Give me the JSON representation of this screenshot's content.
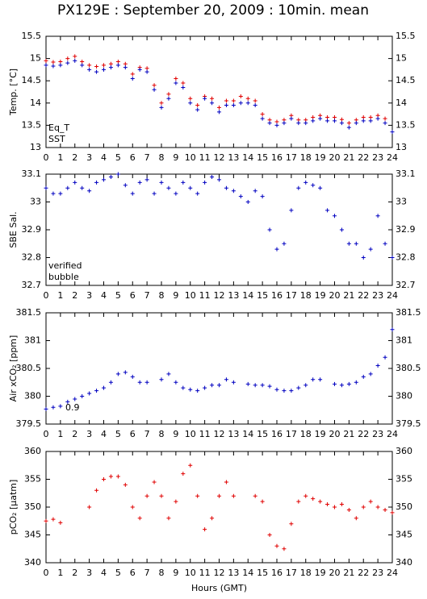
{
  "title": "PX129E : September 20, 2009 : 10min. mean",
  "chart_data": [
    {
      "type": "scatter",
      "ylabel": "Temp. [°C]",
      "legend": "lower left",
      "xlim": [
        0,
        24
      ],
      "xticks": [
        0,
        1,
        2,
        3,
        4,
        5,
        6,
        7,
        8,
        9,
        10,
        11,
        12,
        13,
        14,
        15,
        16,
        17,
        18,
        19,
        20,
        21,
        22,
        23,
        24
      ],
      "ylim": [
        13,
        15.5
      ],
      "yticks": [
        13,
        13.5,
        14,
        14.5,
        15,
        15.5
      ],
      "x": [
        0,
        0.5,
        1,
        1.5,
        2,
        2.5,
        3,
        3.5,
        4,
        4.5,
        5,
        5.5,
        6,
        6.5,
        7,
        7.5,
        8,
        8.5,
        9,
        9.5,
        10,
        10.5,
        11,
        11.5,
        12,
        12.5,
        13,
        13.5,
        14,
        14.5,
        15,
        15.5,
        16,
        16.5,
        17,
        17.5,
        18,
        18.5,
        19,
        19.5,
        20,
        20.5,
        21,
        21.5,
        22,
        22.5,
        23,
        23.5,
        24
      ],
      "series": [
        {
          "name": "Eq_T",
          "color": "#e00000",
          "values": [
            14.95,
            14.92,
            14.93,
            15.0,
            15.05,
            14.93,
            14.85,
            14.82,
            14.85,
            14.88,
            14.93,
            14.88,
            14.65,
            14.8,
            14.78,
            14.4,
            14.0,
            14.2,
            14.55,
            14.45,
            14.1,
            13.95,
            14.15,
            14.1,
            13.9,
            14.05,
            14.05,
            14.15,
            14.1,
            14.05,
            13.75,
            13.62,
            13.58,
            13.62,
            13.72,
            13.62,
            13.62,
            13.68,
            13.72,
            13.68,
            13.68,
            13.63,
            13.55,
            13.62,
            13.68,
            13.68,
            13.72,
            13.65,
            null
          ]
        },
        {
          "name": "SST",
          "color": "#0000c0",
          "values": [
            14.85,
            14.83,
            14.85,
            14.9,
            14.95,
            14.85,
            14.75,
            14.7,
            14.75,
            14.8,
            14.85,
            14.8,
            14.55,
            14.75,
            14.7,
            14.3,
            13.9,
            14.1,
            14.45,
            14.35,
            14.0,
            13.85,
            14.1,
            14.0,
            13.8,
            13.95,
            13.95,
            14.0,
            14.0,
            13.95,
            13.65,
            13.55,
            13.5,
            13.55,
            13.65,
            13.55,
            13.55,
            13.6,
            13.65,
            13.6,
            13.6,
            13.55,
            13.45,
            13.55,
            13.6,
            13.6,
            13.65,
            13.55,
            13.35
          ]
        }
      ]
    },
    {
      "type": "scatter",
      "ylabel": "SBE Sal.",
      "legend": "lower left",
      "xlim": [
        0,
        24
      ],
      "xticks": [
        0,
        1,
        2,
        3,
        4,
        5,
        6,
        7,
        8,
        9,
        10,
        11,
        12,
        13,
        14,
        15,
        16,
        17,
        18,
        19,
        20,
        21,
        22,
        23,
        24
      ],
      "ylim": [
        32.7,
        33.1
      ],
      "yticks": [
        32.7,
        32.8,
        32.9,
        33,
        33.1
      ],
      "x": [
        0,
        0.5,
        1,
        1.5,
        2,
        2.5,
        3,
        3.5,
        4,
        4.5,
        5,
        5.5,
        6,
        6.5,
        7,
        7.5,
        8,
        8.5,
        9,
        9.5,
        10,
        10.5,
        11,
        11.5,
        12,
        12.5,
        13,
        13.5,
        14,
        14.5,
        15,
        15.5,
        16,
        16.5,
        17,
        17.5,
        18,
        18.5,
        19,
        19.5,
        20,
        20.5,
        21,
        21.5,
        22,
        22.5,
        23,
        23.5,
        24
      ],
      "series": [
        {
          "name": "verified",
          "color": "#0000c0",
          "values": [
            33.05,
            33.03,
            33.03,
            33.05,
            33.07,
            33.05,
            33.04,
            33.07,
            33.08,
            33.09,
            33.1,
            33.06,
            33.03,
            33.07,
            33.08,
            33.03,
            33.07,
            33.05,
            33.03,
            33.07,
            33.05,
            33.03,
            33.07,
            33.09,
            33.08,
            33.05,
            33.04,
            33.02,
            33.0,
            33.04,
            33.02,
            32.9,
            32.83,
            32.85,
            32.97,
            33.05,
            33.07,
            33.06,
            33.05,
            32.97,
            32.95,
            32.9,
            32.85,
            32.85,
            32.8,
            32.83,
            32.95,
            32.85,
            32.8
          ]
        },
        {
          "name": "bubble",
          "color": "#c000c0",
          "values": [
            null,
            null,
            null,
            null,
            null,
            null,
            null,
            null,
            null,
            null,
            null,
            null,
            null,
            null,
            null,
            null,
            null,
            null,
            null,
            null,
            null,
            null,
            null,
            null,
            null,
            null,
            null,
            null,
            null,
            null,
            null,
            null,
            null,
            null,
            null,
            null,
            null,
            null,
            null,
            null,
            null,
            null,
            null,
            null,
            null,
            null,
            null,
            null,
            null
          ]
        }
      ]
    },
    {
      "type": "scatter",
      "ylabel": "Air xCO₂ [ppm]",
      "annotation": "0.9",
      "xlim": [
        0,
        24
      ],
      "xticks": [
        0,
        1,
        2,
        3,
        4,
        5,
        6,
        7,
        8,
        9,
        10,
        11,
        12,
        13,
        14,
        15,
        16,
        17,
        18,
        19,
        20,
        21,
        22,
        23,
        24
      ],
      "ylim": [
        379.5,
        381.5
      ],
      "yticks": [
        379.5,
        380,
        380.5,
        381,
        381.5
      ],
      "x": [
        0,
        0.5,
        1,
        1.5,
        2,
        2.5,
        3,
        3.5,
        4,
        4.5,
        5,
        5.5,
        6,
        6.5,
        7,
        7.5,
        8,
        8.5,
        9,
        9.5,
        10,
        10.5,
        11,
        11.5,
        12,
        12.5,
        13,
        13.5,
        14,
        14.5,
        15,
        15.5,
        16,
        16.5,
        17,
        17.5,
        18,
        18.5,
        19,
        19.5,
        20,
        20.5,
        21,
        21.5,
        22,
        22.5,
        23,
        23.5,
        24
      ],
      "series": [
        {
          "color": "#0000c0",
          "values": [
            379.77,
            379.8,
            379.82,
            379.9,
            379.95,
            380.0,
            380.05,
            380.1,
            380.15,
            380.25,
            380.4,
            380.43,
            380.35,
            380.25,
            380.25,
            null,
            380.3,
            380.4,
            380.25,
            380.15,
            380.12,
            380.1,
            380.15,
            380.2,
            380.2,
            380.3,
            380.25,
            null,
            380.22,
            380.2,
            380.2,
            380.18,
            380.12,
            380.1,
            380.1,
            380.15,
            380.2,
            380.3,
            380.3,
            null,
            380.22,
            380.2,
            380.22,
            380.25,
            380.35,
            380.4,
            380.55,
            380.7,
            381.2
          ]
        }
      ]
    },
    {
      "type": "scatter",
      "ylabel": "pCO₂ [μatm]",
      "xlabel": "Hours (GMT)",
      "xlim": [
        0,
        24
      ],
      "xticks": [
        0,
        1,
        2,
        3,
        4,
        5,
        6,
        7,
        8,
        9,
        10,
        11,
        12,
        13,
        14,
        15,
        16,
        17,
        18,
        19,
        20,
        21,
        22,
        23,
        24
      ],
      "ylim": [
        340,
        360
      ],
      "yticks": [
        340,
        345,
        350,
        355,
        360
      ],
      "x": [
        0,
        0.5,
        1,
        1.5,
        2,
        2.5,
        3,
        3.5,
        4,
        4.5,
        5,
        5.5,
        6,
        6.5,
        7,
        7.5,
        8,
        8.5,
        9,
        9.5,
        10,
        10.5,
        11,
        11.5,
        12,
        12.5,
        13,
        13.5,
        14,
        14.5,
        15,
        15.5,
        16,
        16.5,
        17,
        17.5,
        18,
        18.5,
        19,
        19.5,
        20,
        20.5,
        21,
        21.5,
        22,
        22.5,
        23,
        23.5,
        24
      ],
      "series": [
        {
          "color": "#e00000",
          "values": [
            347.5,
            347.8,
            347.2,
            null,
            null,
            null,
            350,
            353,
            355,
            355.5,
            355.5,
            354,
            350,
            348,
            352,
            354.5,
            352,
            348,
            351,
            356,
            357.5,
            352,
            346,
            348,
            352,
            354.5,
            352,
            null,
            null,
            352,
            351,
            345,
            343,
            342.5,
            347,
            351,
            352,
            351.5,
            351,
            350.5,
            350,
            350.5,
            349.5,
            348,
            350,
            351,
            350,
            349.5,
            349
          ]
        }
      ]
    }
  ]
}
